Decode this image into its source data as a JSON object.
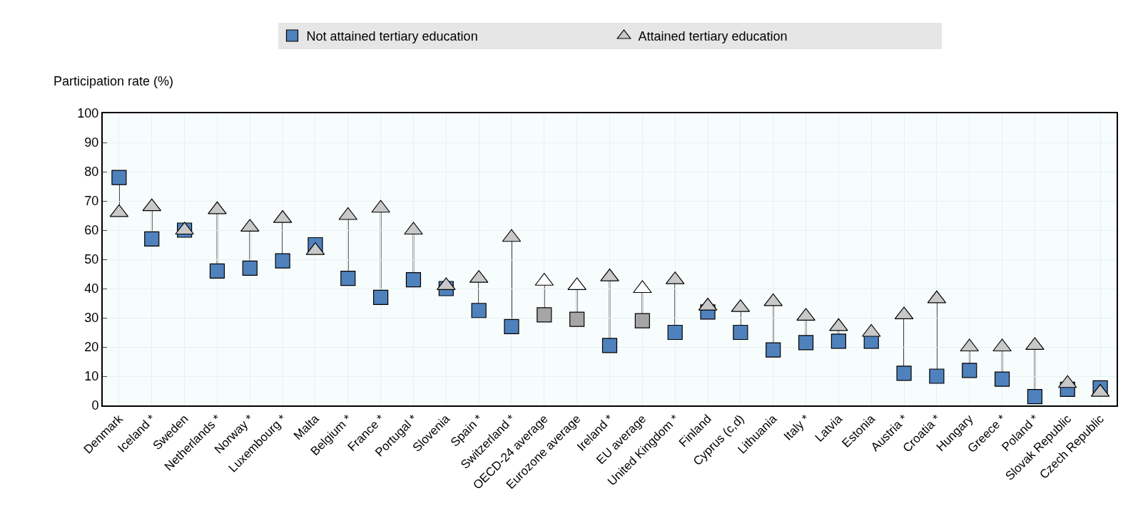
{
  "chart_data": {
    "type": "scatter",
    "ylabel": "Participation rate (%)",
    "categories": [
      "Denmark",
      "Iceland *",
      "Sweden",
      "Netherlands *",
      "Norway *",
      "Luxembourg *",
      "Malta",
      "Belgium *",
      "France *",
      "Portugal *",
      "Slovenia",
      "Spain *",
      "Switzerland *",
      "OECD-24 average",
      "Eurozone average",
      "Ireland *",
      "EU average",
      "United Kingdom *",
      "Finland",
      "Cyprus (c,d)",
      "Lithuania",
      "Italy *",
      "Latvia",
      "Estonia",
      "Austria *",
      "Croatia *",
      "Hungary",
      "Greece *",
      "Poland *",
      "Slovak Republic",
      "Czech Republic"
    ],
    "series": [
      {
        "name": "Not attained tertiary education",
        "color": "#4f81bd",
        "marker": "square",
        "colors": [
          "#4f81bd",
          "#4f81bd",
          "#4f81bd",
          "#4f81bd",
          "#4f81bd",
          "#4f81bd",
          "#4f81bd",
          "#4f81bd",
          "#4f81bd",
          "#4f81bd",
          "#4f81bd",
          "#4f81bd",
          "#4f81bd",
          "#a6a6a6",
          "#a6a6a6",
          "#4f81bd",
          "#a6a6a6",
          "#4f81bd",
          "#4f81bd",
          "#4f81bd",
          "#4f81bd",
          "#4f81bd",
          "#4f81bd",
          "#4f81bd",
          "#4f81bd",
          "#4f81bd",
          "#4f81bd",
          "#4f81bd",
          "#4f81bd",
          "#4f81bd",
          "#4f81bd"
        ],
        "values": [
          78,
          57,
          60,
          46,
          47,
          49.5,
          55,
          43.5,
          37,
          43,
          40,
          32.5,
          27,
          31,
          29.5,
          20.5,
          29,
          25,
          32,
          25,
          19,
          21.5,
          22,
          22,
          11,
          10,
          12,
          9,
          3,
          5.5,
          6
        ]
      },
      {
        "name": "Attained tertiary education",
        "color": "#c8c8c8",
        "marker": "triangle",
        "colors": [
          "#c8c8c8",
          "#c8c8c8",
          "#c8c8c8",
          "#c8c8c8",
          "#c8c8c8",
          "#c8c8c8",
          "#c8c8c8",
          "#c8c8c8",
          "#c8c8c8",
          "#c8c8c8",
          "#c8c8c8",
          "#c8c8c8",
          "#c8c8c8",
          "#ffffff",
          "#ffffff",
          "#c8c8c8",
          "#ffffff",
          "#c8c8c8",
          "#c8c8c8",
          "#c8c8c8",
          "#c8c8c8",
          "#c8c8c8",
          "#c8c8c8",
          "#c8c8c8",
          "#c8c8c8",
          "#c8c8c8",
          "#c8c8c8",
          "#c8c8c8",
          "#c8c8c8",
          "#c8c8c8",
          "#c8c8c8"
        ],
        "values": [
          66,
          68,
          60,
          67,
          61,
          64,
          53,
          65,
          67.5,
          60,
          41,
          43.5,
          57.5,
          42.5,
          41,
          44,
          40,
          43,
          34,
          33.5,
          35.5,
          30.5,
          27,
          25,
          31,
          36.5,
          20,
          20,
          20.5,
          7.5,
          4.5
        ]
      }
    ],
    "ylim": [
      0,
      100
    ],
    "yticks": [
      0,
      10,
      20,
      30,
      40,
      50,
      60,
      70,
      80,
      90,
      100
    ],
    "grid": true,
    "legend": "top"
  }
}
